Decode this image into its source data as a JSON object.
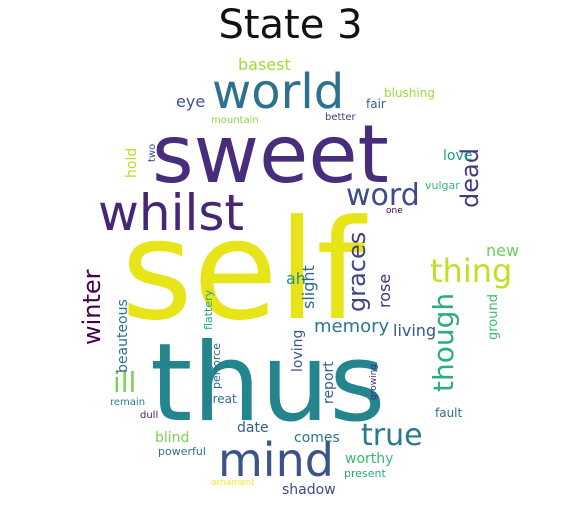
{
  "title": "State 3",
  "colors": {
    "background": "#ffffff",
    "title": "#111111",
    "palette": "viridis"
  },
  "words": [
    {
      "text": "self",
      "color": "#e7e419"
    },
    {
      "text": "thus",
      "color": "#25858e"
    },
    {
      "text": "sweet",
      "color": "#472d7b"
    },
    {
      "text": "world",
      "color": "#2c728e"
    },
    {
      "text": "whilst",
      "color": "#482677"
    },
    {
      "text": "mind",
      "color": "#3b528b"
    },
    {
      "text": "thing",
      "color": "#c2df23"
    },
    {
      "text": "word",
      "color": "#3e4a89"
    },
    {
      "text": "true",
      "color": "#2a788e"
    },
    {
      "text": "dead",
      "color": "#453781"
    },
    {
      "text": "though",
      "color": "#29af7f"
    },
    {
      "text": "graces",
      "color": "#404387"
    },
    {
      "text": "winter",
      "color": "#440154"
    },
    {
      "text": "ill",
      "color": "#7ad151"
    },
    {
      "text": "memory",
      "color": "#2a788e"
    },
    {
      "text": "basest",
      "color": "#a5db36"
    },
    {
      "text": "eye",
      "color": "#3b528b"
    },
    {
      "text": "blushing",
      "color": "#9fda3a"
    },
    {
      "text": "fair",
      "color": "#33638d"
    },
    {
      "text": "mountain",
      "color": "#8fd744"
    },
    {
      "text": "better",
      "color": "#453781"
    },
    {
      "text": "hold",
      "color": "#b5de2b"
    },
    {
      "text": "two",
      "color": "#3b528b"
    },
    {
      "text": "love",
      "color": "#1f988b"
    },
    {
      "text": "vulgar",
      "color": "#35b779"
    },
    {
      "text": "one",
      "color": "#440154"
    },
    {
      "text": "new",
      "color": "#6ccd5a"
    },
    {
      "text": "ah",
      "color": "#20928c"
    },
    {
      "text": "slight",
      "color": "#31688e"
    },
    {
      "text": "rose",
      "color": "#472d7b"
    },
    {
      "text": "beauteous",
      "color": "#2d708e"
    },
    {
      "text": "flattery",
      "color": "#22a785"
    },
    {
      "text": "loving",
      "color": "#3b528b"
    },
    {
      "text": "living",
      "color": "#39568c"
    },
    {
      "text": "ground",
      "color": "#3fbc73"
    },
    {
      "text": "report",
      "color": "#355f8d"
    },
    {
      "text": "perforce",
      "color": "#31688e"
    },
    {
      "text": "remain",
      "color": "#26828e"
    },
    {
      "text": "great",
      "color": "#2c728e"
    },
    {
      "text": "growing",
      "color": "#482878"
    },
    {
      "text": "fault",
      "color": "#2e6e8e"
    },
    {
      "text": "dull",
      "color": "#482475"
    },
    {
      "text": "blind",
      "color": "#7ad151"
    },
    {
      "text": "date",
      "color": "#365c8d"
    },
    {
      "text": "comes",
      "color": "#2c728e"
    },
    {
      "text": "worthy",
      "color": "#38b977"
    },
    {
      "text": "powerful",
      "color": "#2d708e"
    },
    {
      "text": "present",
      "color": "#23a983"
    },
    {
      "text": "ornament",
      "color": "#fde725"
    },
    {
      "text": "shadow",
      "color": "#3e4a89"
    }
  ]
}
